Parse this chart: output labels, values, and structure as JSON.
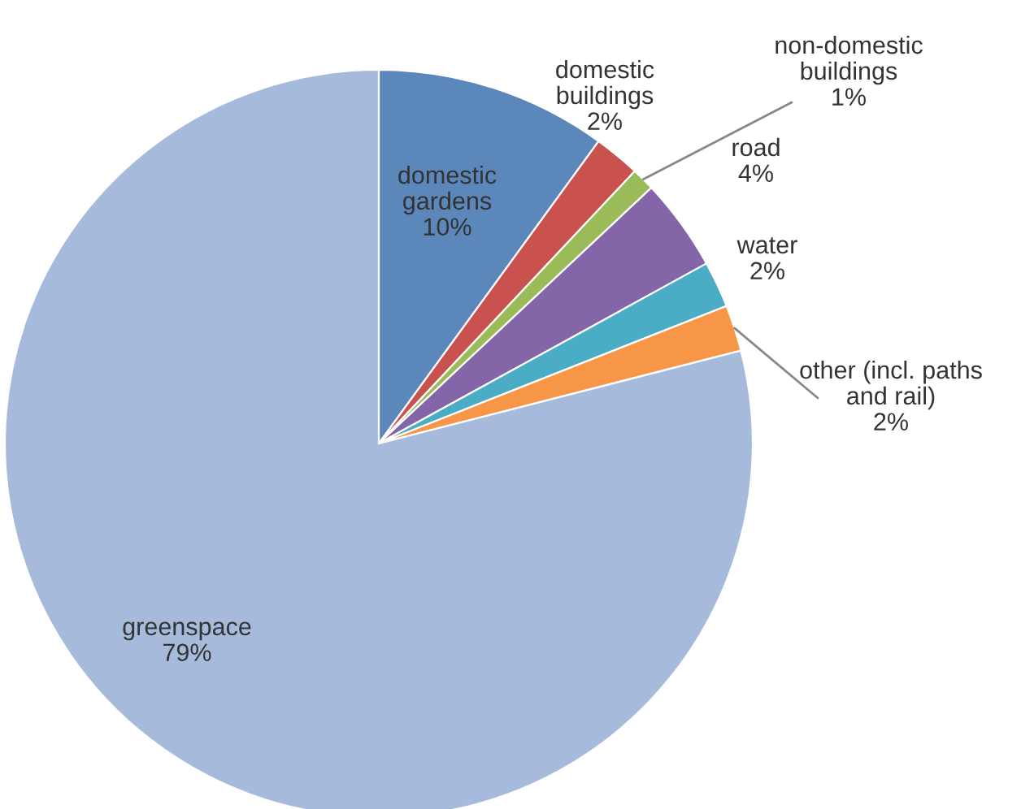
{
  "chart_data": {
    "type": "pie",
    "categories": [
      "domestic\ngardens",
      "domestic\nbuildings",
      "non-domestic\nbuildings",
      "road",
      "water",
      "other (incl. paths\nand rail)",
      "greenspace"
    ],
    "values": [
      10,
      2,
      1,
      4,
      2,
      2,
      79
    ],
    "value_labels": [
      "10%",
      "2%",
      "1%",
      "4%",
      "2%",
      "2%",
      "79%"
    ],
    "colors": [
      "#5b87ba",
      "#c9524f",
      "#9bbb59",
      "#8466a8",
      "#4bacc6",
      "#f79646",
      "#a6bbdc"
    ]
  }
}
